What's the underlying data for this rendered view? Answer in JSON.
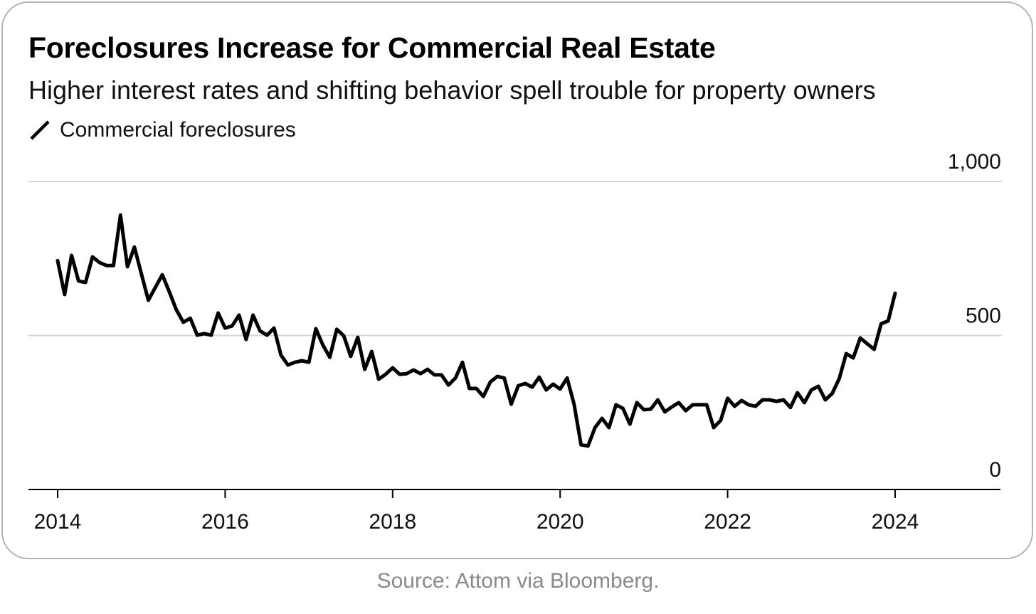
{
  "title": "Foreclosures Increase for Commercial Real Estate",
  "subtitle": "Higher interest rates and shifting behavior spell trouble for property owners",
  "source": "Source: Attom via Bloomberg.",
  "chart_data": {
    "type": "line",
    "title": "Foreclosures Increase for Commercial Real Estate",
    "subtitle": "Higher interest rates and shifting behavior spell trouble for property owners",
    "xlabel": "",
    "ylabel": "",
    "x_start": "2014-01",
    "x_frequency": "monthly",
    "xlim": [
      2014,
      2025.2
    ],
    "ylim": [
      0,
      1000
    ],
    "x_ticks": [
      2014,
      2016,
      2018,
      2020,
      2022,
      2024
    ],
    "x_tick_labels": [
      "2014",
      "2016",
      "2018",
      "2020",
      "2022",
      "2024"
    ],
    "y_ticks": [
      0,
      500,
      1000
    ],
    "y_tick_labels": [
      "0",
      "500",
      "1,000"
    ],
    "grid": true,
    "legend": {
      "position": "top-left",
      "entries": [
        "Commercial foreclosures"
      ]
    },
    "series": [
      {
        "name": "Commercial foreclosures",
        "color": "#000000",
        "values": [
          743,
          633,
          760,
          677,
          672,
          755,
          737,
          727,
          727,
          891,
          723,
          787,
          700,
          614,
          656,
          697,
          642,
          584,
          543,
          556,
          501,
          506,
          501,
          573,
          524,
          531,
          566,
          487,
          566,
          515,
          501,
          524,
          436,
          404,
          413,
          418,
          413,
          522,
          469,
          429,
          520,
          499,
          432,
          494,
          390,
          448,
          358,
          374,
          395,
          374,
          376,
          388,
          376,
          390,
          372,
          372,
          339,
          362,
          413,
          328,
          328,
          302,
          349,
          367,
          362,
          277,
          337,
          344,
          332,
          365,
          323,
          342,
          326,
          362,
          277,
          145,
          141,
          201,
          231,
          201,
          275,
          263,
          212,
          282,
          259,
          261,
          291,
          252,
          268,
          282,
          256,
          275,
          275,
          275,
          201,
          224,
          296,
          270,
          289,
          275,
          270,
          291,
          291,
          286,
          291,
          266,
          314,
          282,
          323,
          335,
          291,
          312,
          360,
          441,
          427,
          492,
          473,
          455,
          538,
          547,
          637
        ]
      }
    ]
  }
}
